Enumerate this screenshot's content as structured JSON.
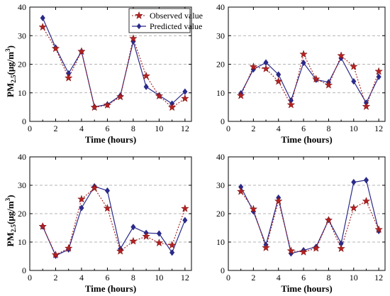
{
  "colors": {
    "observed": "#a01818",
    "predicted": "#2a2a8a",
    "grid": "#9a9a9a",
    "axis": "#000000"
  },
  "legend": {
    "observed_label": "Observed value",
    "predicted_label": "Predicted value"
  },
  "chart_data": [
    {
      "type": "line",
      "xlabel": "Time (hours)",
      "ylabel_parts": [
        "PM",
        "2.5",
        "(μg/m",
        "3",
        ")"
      ],
      "xlim": [
        0,
        12.5
      ],
      "ylim": [
        0,
        40
      ],
      "xticks": [
        0,
        2,
        4,
        6,
        8,
        10,
        12
      ],
      "yticks": [
        0,
        10,
        20,
        30,
        40
      ],
      "grid": "horizontal dashed",
      "legend_position": "top-right",
      "x": [
        1,
        2,
        3,
        4,
        5,
        6,
        7,
        8,
        9,
        10,
        11,
        12
      ],
      "series": [
        {
          "name": "Observed value",
          "values": [
            33.0,
            25.5,
            15.2,
            24.5,
            4.9,
            5.7,
            8.6,
            29.0,
            15.9,
            8.9,
            4.9,
            8.0
          ]
        },
        {
          "name": "Predicted value",
          "values": [
            36.2,
            25.8,
            16.8,
            24.5,
            5.1,
            5.9,
            9.0,
            28.0,
            12.1,
            9.1,
            6.2,
            10.4
          ]
        }
      ]
    },
    {
      "type": "line",
      "xlabel": "Time (hours)",
      "xlim": [
        0,
        12.5
      ],
      "ylim": [
        0,
        40
      ],
      "xticks": [
        0,
        2,
        4,
        6,
        8,
        10,
        12
      ],
      "yticks": [
        0,
        10,
        20,
        30,
        40
      ],
      "grid": "horizontal dashed",
      "x": [
        1,
        2,
        3,
        4,
        5,
        6,
        7,
        8,
        9,
        10,
        11,
        12
      ],
      "series": [
        {
          "name": "Observed value",
          "values": [
            9.0,
            19.1,
            18.4,
            14.0,
            5.8,
            23.5,
            14.8,
            12.7,
            23.0,
            19.2,
            5.2,
            17.5
          ]
        },
        {
          "name": "Predicted value",
          "values": [
            9.8,
            18.2,
            20.6,
            16.4,
            7.3,
            20.5,
            14.6,
            13.7,
            22.2,
            14.0,
            6.5,
            15.6
          ]
        }
      ]
    },
    {
      "type": "line",
      "xlabel": "Time (hours)",
      "ylabel_parts": [
        "PM",
        "2.5",
        "(μg/m",
        "3",
        ")"
      ],
      "xlim": [
        0,
        12.5
      ],
      "ylim": [
        0,
        40
      ],
      "xticks": [
        0,
        2,
        4,
        6,
        8,
        10,
        12
      ],
      "yticks": [
        0,
        10,
        20,
        30,
        40
      ],
      "grid": "horizontal dashed",
      "x": [
        1,
        2,
        3,
        4,
        5,
        6,
        7,
        8,
        9,
        10,
        11,
        12
      ],
      "series": [
        {
          "name": "Observed value",
          "values": [
            15.5,
            5.5,
            7.8,
            25.1,
            29.0,
            21.9,
            6.8,
            10.3,
            12.0,
            9.7,
            8.9,
            21.8
          ]
        },
        {
          "name": "Predicted value",
          "values": [
            15.5,
            5.2,
            7.4,
            22.0,
            29.6,
            28.1,
            7.6,
            15.3,
            13.2,
            13.0,
            6.3,
            17.7
          ]
        }
      ]
    },
    {
      "type": "line",
      "xlabel": "Time (hours)",
      "xlim": [
        0,
        12.5
      ],
      "ylim": [
        0,
        40
      ],
      "xticks": [
        0,
        2,
        4,
        6,
        8,
        10,
        12
      ],
      "yticks": [
        0,
        10,
        20,
        30,
        40
      ],
      "grid": "horizontal dashed",
      "x": [
        1,
        2,
        3,
        4,
        5,
        6,
        7,
        8,
        9,
        10,
        11,
        12
      ],
      "series": [
        {
          "name": "Observed value",
          "values": [
            27.8,
            21.6,
            8.0,
            24.4,
            6.9,
            6.5,
            7.8,
            17.7,
            7.7,
            22.0,
            24.4,
            14.4
          ]
        },
        {
          "name": "Predicted value",
          "values": [
            29.4,
            20.8,
            9.0,
            25.6,
            6.0,
            7.1,
            8.3,
            17.8,
            9.5,
            31.1,
            31.8,
            13.9
          ]
        }
      ]
    }
  ]
}
